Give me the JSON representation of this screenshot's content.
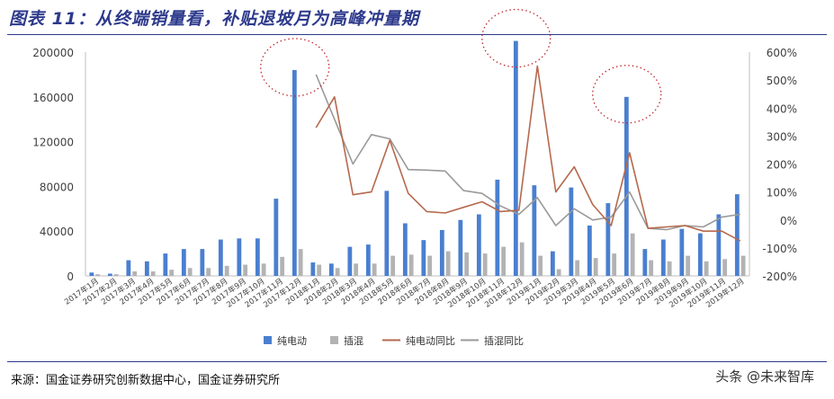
{
  "title": "图表 11：从终端销量看，补贴退坡月为高峰冲量期",
  "source": "来源：国金证券研究创新数据中心，国金证券研究所",
  "watermark": "头条 @未来智库",
  "colors": {
    "bev": "#4a7fd0",
    "phev": "#b3b3b3",
    "bev_yoy": "#b5694d",
    "phev_yoy": "#9a9a9a",
    "accent": "#2d3a8c",
    "highlight": "#c0282d"
  },
  "chart_data": {
    "type": "bar",
    "categories": [
      "2017年1月",
      "2017年2月",
      "2017年3月",
      "2017年4月",
      "2017年5月",
      "2017年6月",
      "2017年7月",
      "2017年8月",
      "2017年9月",
      "2017年10月",
      "2017年11月",
      "2017年12月",
      "2018年1月",
      "2018年2月",
      "2018年3月",
      "2018年4月",
      "2018年5月",
      "2018年6月",
      "2018年7月",
      "2018年8月",
      "2018年9月",
      "2018年10月",
      "2018年11月",
      "2018年12月",
      "2019年1月",
      "2019年2月",
      "2019年3月",
      "2019年4月",
      "2019年5月",
      "2019年6月",
      "2019年7月",
      "2019年8月",
      "2019年9月",
      "2019年10月",
      "2019年11月",
      "2019年12月"
    ],
    "series": [
      {
        "name": "纯电动",
        "kind": "bar",
        "axis": "left",
        "values": [
          3000,
          2000,
          14000,
          13000,
          20000,
          24000,
          24000,
          32500,
          33500,
          33500,
          69000,
          184000,
          12000,
          11000,
          26000,
          28000,
          76000,
          47000,
          32000,
          41000,
          50000,
          55000,
          86000,
          210000,
          81000,
          22000,
          79000,
          45000,
          65000,
          160000,
          24000,
          32500,
          42000,
          38000,
          55000,
          73000
        ]
      },
      {
        "name": "插混",
        "kind": "bar",
        "axis": "left",
        "values": [
          1500,
          1500,
          4000,
          4000,
          5500,
          7000,
          7000,
          9000,
          10000,
          11000,
          17000,
          24000,
          10000,
          7000,
          11000,
          11000,
          18000,
          19000,
          18000,
          22000,
          21000,
          20000,
          26000,
          30000,
          18000,
          6000,
          14000,
          16000,
          20000,
          38000,
          14000,
          13000,
          18000,
          13000,
          15000,
          18000
        ]
      },
      {
        "name": "纯电动同比",
        "kind": "line",
        "axis": "right",
        "values": [
          null,
          null,
          null,
          null,
          null,
          null,
          null,
          null,
          null,
          null,
          null,
          null,
          330,
          440,
          90,
          100,
          285,
          95,
          30,
          25,
          45,
          65,
          30,
          35,
          550,
          100,
          190,
          55,
          -20,
          240,
          -30,
          -25,
          -20,
          -40,
          -40,
          -75
        ]
      },
      {
        "name": "插混同比",
        "kind": "line",
        "axis": "right",
        "values": [
          null,
          null,
          null,
          null,
          null,
          null,
          null,
          null,
          null,
          null,
          null,
          null,
          520,
          360,
          200,
          305,
          290,
          180,
          178,
          175,
          105,
          95,
          50,
          20,
          80,
          -20,
          40,
          0,
          10,
          100,
          -30,
          -35,
          -20,
          -25,
          10,
          20
        ]
      }
    ],
    "y_left": {
      "ylim": [
        0,
        200000
      ],
      "ticks": [
        "0",
        "40000",
        "80000",
        "120000",
        "160000",
        "200000"
      ]
    },
    "y_right": {
      "ylim": [
        -200,
        600
      ],
      "ticks": [
        "-200%",
        "-100%",
        "0%",
        "100%",
        "200%",
        "300%",
        "400%",
        "500%",
        "600%"
      ]
    },
    "grid": false,
    "legend_position": "bottom",
    "annotations": [
      {
        "type": "dotted-ellipse",
        "category": "2017年12月"
      },
      {
        "type": "dotted-ellipse",
        "category": "2018年12月"
      },
      {
        "type": "dotted-ellipse",
        "category": "2019年6月"
      }
    ]
  }
}
